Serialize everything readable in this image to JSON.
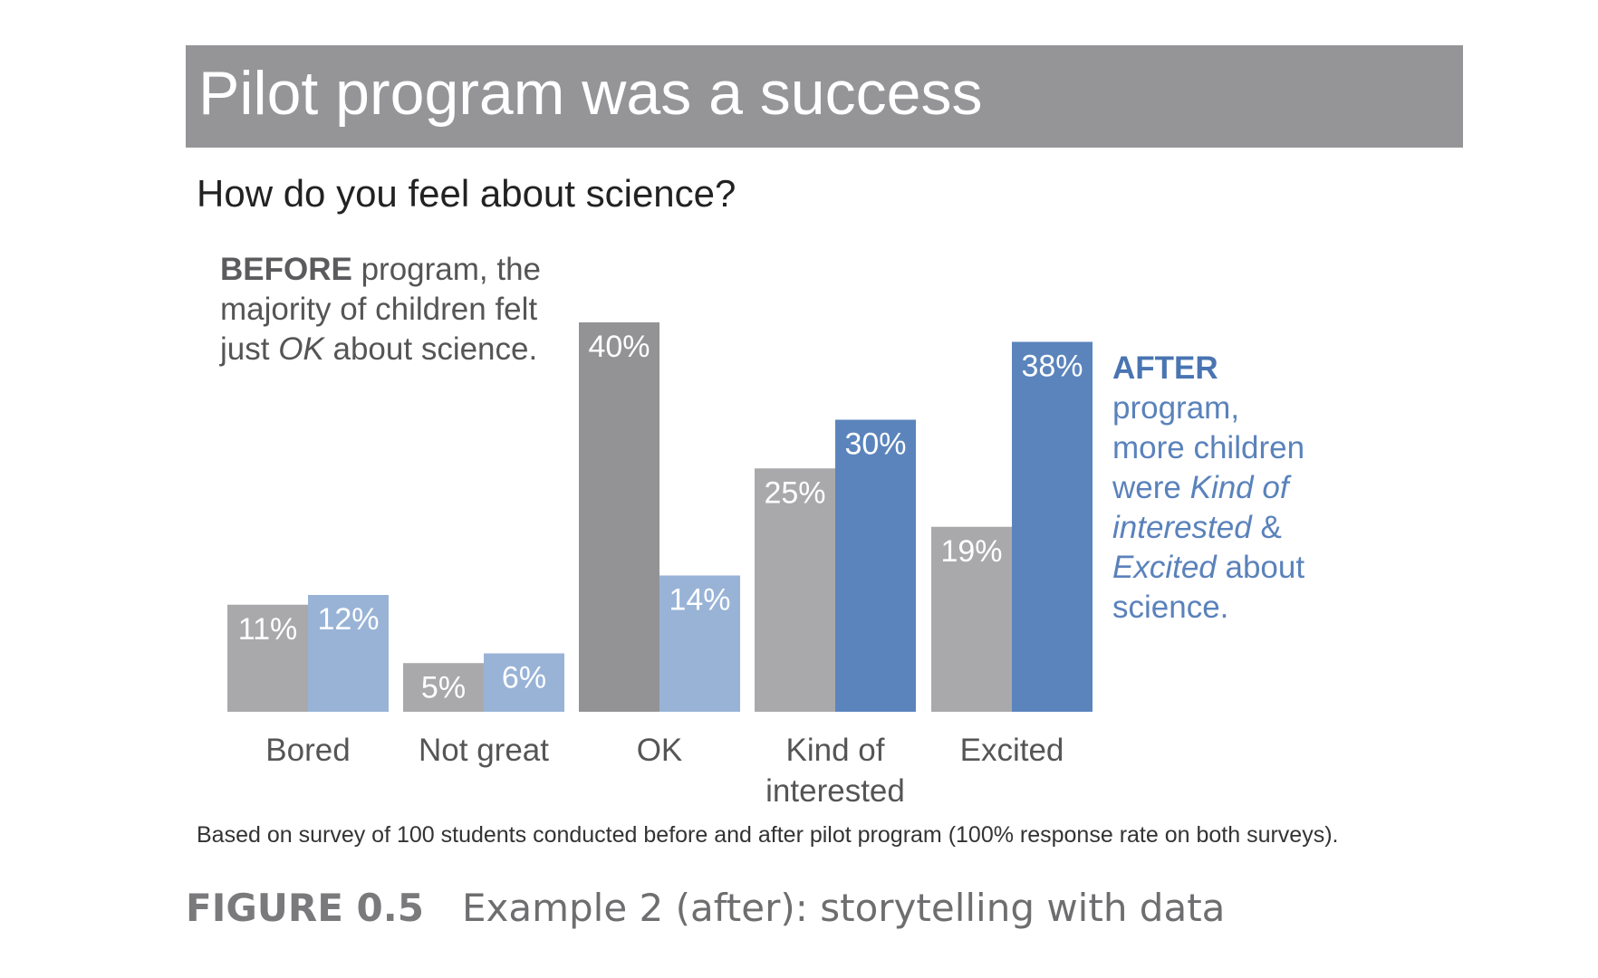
{
  "chart_data": {
    "type": "bar",
    "title": "Pilot program was a success",
    "subtitle": "How do you feel about science?",
    "categories": [
      "Bored",
      "Not great",
      "OK",
      "Kind of\ninterested",
      "Excited"
    ],
    "series": [
      {
        "name": "Before",
        "values": [
          11,
          5,
          40,
          25,
          19
        ],
        "labels": [
          "11%",
          "5%",
          "40%",
          "25%",
          "19%"
        ]
      },
      {
        "name": "After",
        "values": [
          12,
          6,
          14,
          30,
          38
        ],
        "labels": [
          "12%",
          "6%",
          "14%",
          "30%",
          "38%"
        ]
      }
    ],
    "ylim": [
      0,
      40
    ],
    "xlabel": "",
    "ylabel": "",
    "annotations": {
      "before": {
        "bold": "BEFORE",
        "line1_rest": " program, the",
        "line2": "majority of children felt",
        "line3_pre": "just ",
        "line3_em": "OK",
        "line3_post": " about science."
      },
      "after": {
        "bold": "AFTER",
        "line2": "program,",
        "line3": "more children",
        "line4_pre": "were ",
        "line4_em": "Kind of",
        "line5_em": "interested",
        "line5_post": " &",
        "line6_em": "Excited",
        "line6_post": " about",
        "line7": "science."
      }
    },
    "footnote": "Based on survey of 100 students conducted before and after pilot program (100% response rate on both surveys).",
    "colors": {
      "before": "#a9a9ac",
      "before_highlight": "#939396",
      "after_light": "#99b3d7",
      "after_highlight": "#5b84bc",
      "category_text": "#555555"
    }
  },
  "figure": {
    "label": "FIGURE 0.5",
    "text": "Example 2 (after): storytelling with data"
  }
}
